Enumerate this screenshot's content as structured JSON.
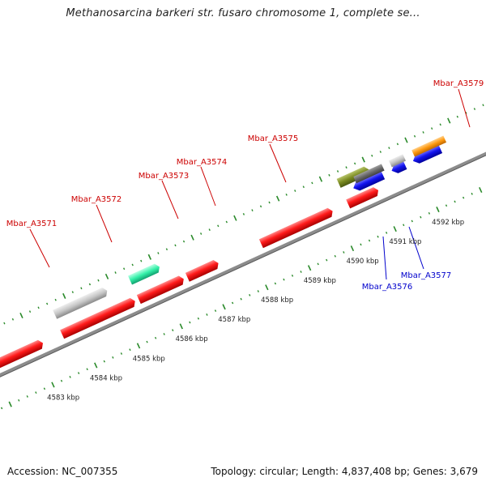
{
  "title": "Methanosarcina barkeri str. fusaro chromosome 1, complete se...",
  "footer": {
    "accession": "Accession: NC_007355",
    "stats": "Topology: circular; Length: 4,837,408 bp; Genes: 3,679"
  },
  "scale": {
    "unit": "kbp",
    "labeled_ticks": [
      "4583 kbp",
      "4584 kbp",
      "4585 kbp",
      "4586 kbp",
      "4587 kbp",
      "4588 kbp",
      "4589 kbp",
      "4590 kbp",
      "4591 kbp",
      "4592 kbp"
    ]
  },
  "colors": {
    "backbone": "#8c8c8c",
    "ruler_tick": "#2a8a2a",
    "forward_label": "#cc0000",
    "reverse_label": "#0000cc"
  },
  "genes": [
    {
      "label": "Mbar_A3571",
      "strand": "forward",
      "color": "#cc0000"
    },
    {
      "label": "Mbar_A3572",
      "strand": "forward",
      "color": "#cc0000"
    },
    {
      "label": "Mbar_A3573",
      "strand": "forward",
      "color": "#cc0000"
    },
    {
      "label": "Mbar_A3574",
      "strand": "forward",
      "color": "#cc0000"
    },
    {
      "label": "Mbar_A3575",
      "strand": "forward",
      "color": "#cc0000"
    },
    {
      "label": "Mbar_A3576",
      "strand": "reverse",
      "color": "#0000cc"
    },
    {
      "label": "Mbar_A3577",
      "strand": "reverse",
      "color": "#0000cc"
    },
    {
      "label": "Mbar_A3579",
      "strand": "forward",
      "color": "#cc0000"
    }
  ]
}
